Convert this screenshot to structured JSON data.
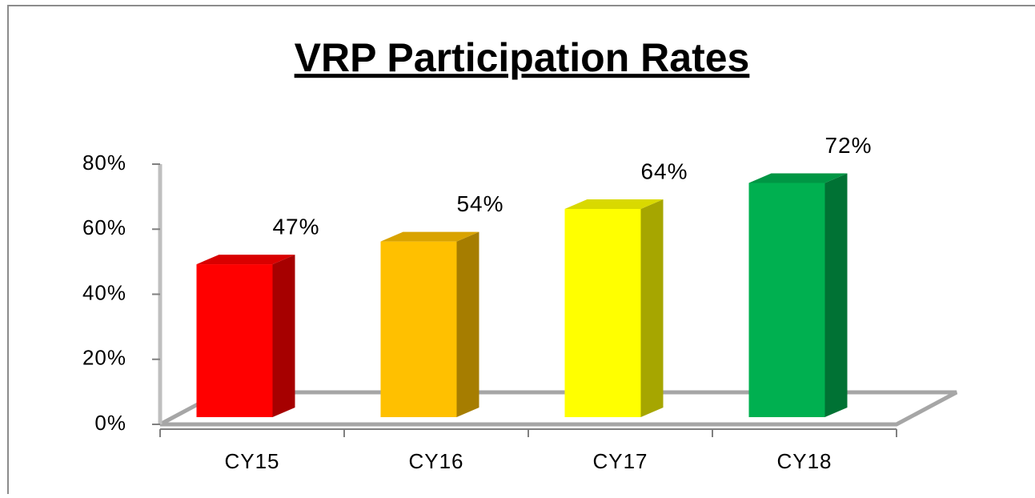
{
  "chart_data": {
    "type": "bar3d",
    "title": "VRP Participation Rates",
    "categories": [
      "CY15",
      "CY16",
      "CY17",
      "CY18"
    ],
    "values": [
      47,
      54,
      64,
      72
    ],
    "value_labels": [
      "47%",
      "54%",
      "64%",
      "72%"
    ],
    "colors": [
      "#ff0000",
      "#ffc000",
      "#ffff00",
      "#00b050"
    ],
    "ylim": [
      0,
      80
    ],
    "yticks": [
      {
        "value": 0,
        "label": "0%"
      },
      {
        "value": 20,
        "label": "20%"
      },
      {
        "value": 40,
        "label": "40%"
      },
      {
        "value": 60,
        "label": "60%"
      },
      {
        "value": 80,
        "label": "80%"
      }
    ]
  }
}
